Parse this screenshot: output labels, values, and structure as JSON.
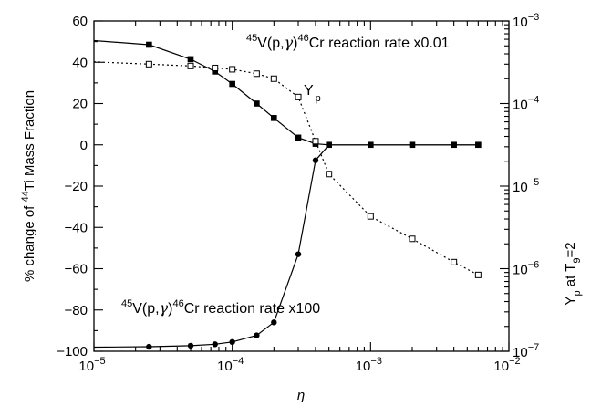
{
  "chart_data": {
    "type": "line",
    "xlabel": "η",
    "ylabel": "% change of ⁴⁴Ti Mass Fraction",
    "y2label": "Y_p at T_9=2",
    "x_scale": "log",
    "xlim": [
      1e-05,
      0.01
    ],
    "ylim": [
      -100,
      60
    ],
    "y2_scale": "log",
    "y2lim": [
      1e-07,
      0.001
    ],
    "grid": false,
    "x_ticks": [
      {
        "v": 1e-05,
        "base": "10",
        "exp": "−5"
      },
      {
        "v": 0.0001,
        "base": "10",
        "exp": "−4"
      },
      {
        "v": 0.001,
        "base": "10",
        "exp": "−3"
      },
      {
        "v": 0.01,
        "base": "10",
        "exp": "−2"
      }
    ],
    "y_ticks": [
      "60",
      "40",
      "20",
      "0",
      "−20",
      "−40",
      "−60",
      "−80",
      "−100"
    ],
    "y_tick_values": [
      60,
      40,
      20,
      0,
      -20,
      -40,
      -60,
      -80,
      -100
    ],
    "y2_ticks": [
      {
        "v": 0.001,
        "base": "10",
        "exp": "−3"
      },
      {
        "v": 0.0001,
        "base": "10",
        "exp": "−4"
      },
      {
        "v": 1e-05,
        "base": "10",
        "exp": "−5"
      },
      {
        "v": 1e-06,
        "base": "10",
        "exp": "−6"
      },
      {
        "v": 1e-07,
        "base": "10",
        "exp": "−7"
      }
    ],
    "series": [
      {
        "axis": "left",
        "marker": "filled-square",
        "style": "solid",
        "x": [
          1e-05,
          2.5e-05,
          5e-05,
          7.5e-05,
          0.0001,
          0.00015,
          0.0002,
          0.0003,
          0.0004,
          0.0005,
          0.001,
          0.002,
          0.004,
          0.006
        ],
        "y": [
          50.5,
          48.5,
          41.5,
          35.5,
          29.5,
          20,
          13,
          3.5,
          0.5,
          0,
          0,
          0,
          0,
          0
        ],
        "markers_from": 1
      },
      {
        "axis": "left",
        "marker": "filled-circle",
        "style": "solid",
        "x": [
          1e-05,
          2.5e-05,
          5e-05,
          7.5e-05,
          0.0001,
          0.00015,
          0.0002,
          0.0003,
          0.0004,
          0.0005,
          0.001,
          0.002,
          0.004,
          0.006
        ],
        "y": [
          -98,
          -97.8,
          -97.3,
          -96.6,
          -95.5,
          -92.3,
          -86,
          -53,
          -7.5,
          0,
          0,
          0,
          0,
          0
        ],
        "markers_from": 1
      },
      {
        "axis": "right",
        "marker": "open-square",
        "style": "dotted",
        "x": [
          1e-05,
          2.5e-05,
          5e-05,
          7.5e-05,
          0.0001,
          0.00015,
          0.0002,
          0.0003,
          0.0004,
          0.0005,
          0.001,
          0.002,
          0.004,
          0.006
        ],
        "y": [
          0.00032,
          0.0003,
          0.000285,
          0.00027,
          0.00026,
          0.00023,
          0.0002,
          0.00012,
          3.5e-05,
          1.4e-05,
          4.3e-06,
          2.3e-06,
          1.2e-06,
          8.4e-07
        ],
        "markers_from": 1
      }
    ],
    "annotations": {
      "upper": {
        "pre": "45",
        "a": "V(p,",
        "gamma": "γ",
        "b": ")",
        "sup": "46",
        "c": "Cr reaction rate x0.01"
      },
      "lower": {
        "pre": "45",
        "a": "V(p,",
        "gamma": "γ",
        "b": ")",
        "sup": "46",
        "c": "Cr reaction rate x100"
      },
      "yp": {
        "a": "Y",
        "sub": "p"
      }
    },
    "ylabel_parts": {
      "a": "% change of ",
      "sup": "44",
      "b": "Ti Mass Fraction"
    },
    "y2label_parts": {
      "a": "Y",
      "sub": "p",
      "b": " at T",
      "sub2": "9",
      "c": "=2"
    }
  }
}
